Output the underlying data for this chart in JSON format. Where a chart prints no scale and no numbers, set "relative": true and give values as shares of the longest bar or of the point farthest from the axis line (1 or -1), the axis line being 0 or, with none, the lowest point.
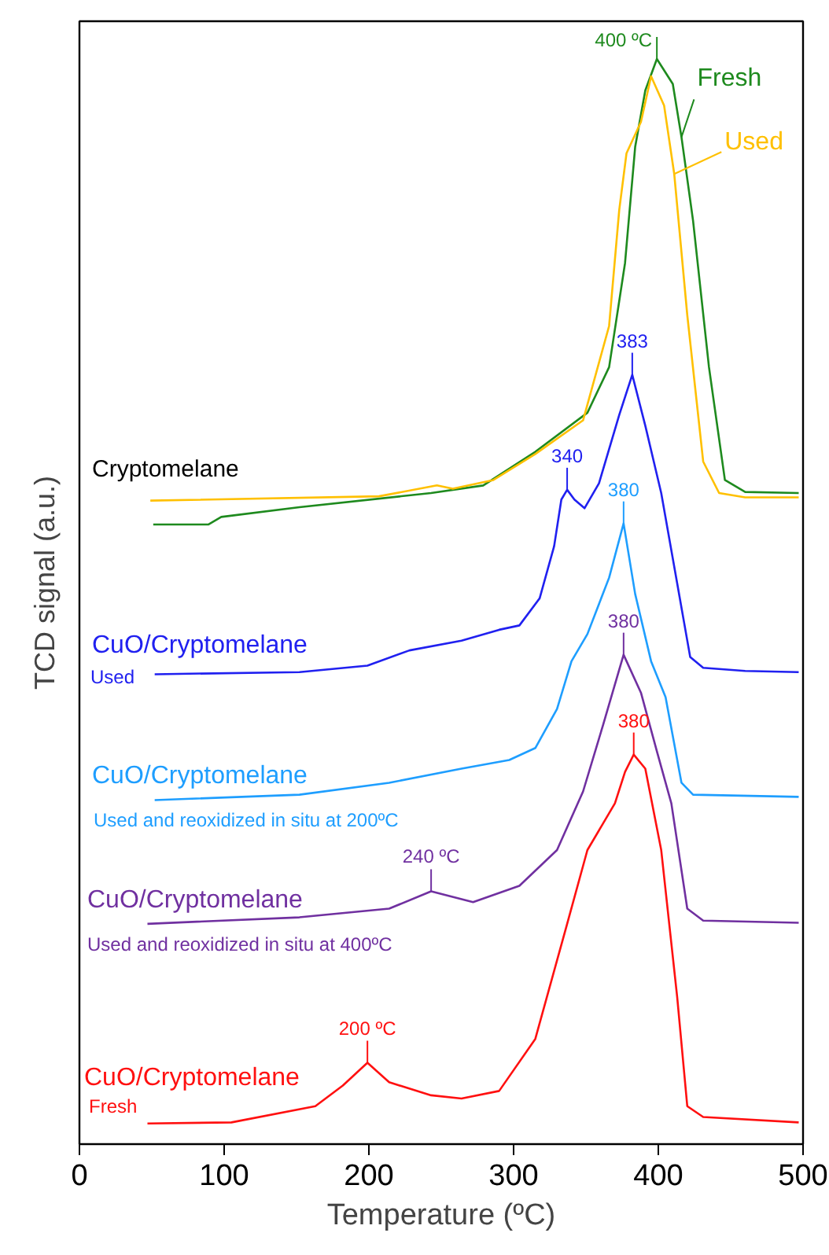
{
  "chart_data": {
    "type": "line",
    "relative": true,
    "xlabel": "Temperature (ºC)",
    "ylabel": "TCD signal (a.u.)",
    "xlim": [
      0,
      500
    ],
    "xticks": [
      0,
      100,
      200,
      300,
      400,
      500
    ],
    "grid": false,
    "series": [
      {
        "name": "Fresh",
        "color": "#1e8a1e",
        "x": [
          51,
          89,
          98,
          152,
          243,
          279,
          315,
          351,
          366,
          377,
          384,
          391,
          399,
          410,
          416,
          424,
          435,
          446,
          460,
          497
        ],
        "values": [
          0.571,
          0.571,
          0.578,
          0.587,
          0.6,
          0.607,
          0.638,
          0.674,
          0.716,
          0.812,
          0.919,
          0.971,
          1.0,
          0.977,
          0.928,
          0.851,
          0.716,
          0.612,
          0.601,
          0.6
        ]
      },
      {
        "name": "Used",
        "color": "#ffc000",
        "x": [
          49,
          207,
          247,
          258,
          286,
          315,
          348,
          366,
          373,
          378,
          388,
          395,
          404,
          411,
          420,
          431,
          442,
          460,
          497
        ],
        "values": [
          0.593,
          0.597,
          0.607,
          0.604,
          0.612,
          0.636,
          0.667,
          0.754,
          0.861,
          0.913,
          0.942,
          0.984,
          0.957,
          0.894,
          0.764,
          0.629,
          0.6,
          0.596,
          0.596
        ]
      },
      {
        "name": "CuO/Cryptomelane",
        "color": "#2020f0",
        "x": [
          52,
          152,
          199,
          228,
          264,
          290,
          304,
          318,
          328,
          333,
          337,
          342,
          349,
          359,
          373,
          382,
          391,
          402,
          413,
          422,
          431,
          460,
          497
        ],
        "values": [
          0.433,
          0.435,
          0.441,
          0.455,
          0.464,
          0.474,
          0.478,
          0.503,
          0.551,
          0.594,
          0.603,
          0.594,
          0.586,
          0.609,
          0.672,
          0.709,
          0.662,
          0.6,
          0.517,
          0.449,
          0.439,
          0.436,
          0.435
        ]
      },
      {
        "name": "CuO/Cryptomelane",
        "color": "#1e9eff",
        "x": [
          52,
          152,
          214,
          264,
          297,
          315,
          330,
          340,
          351,
          366,
          376,
          384,
          395,
          405,
          416,
          424,
          497
        ],
        "values": [
          0.317,
          0.322,
          0.333,
          0.346,
          0.354,
          0.365,
          0.401,
          0.445,
          0.47,
          0.522,
          0.572,
          0.507,
          0.445,
          0.412,
          0.333,
          0.322,
          0.32
        ]
      },
      {
        "name": "CuO/Cryptomelane",
        "color": "#7030a0",
        "x": [
          47,
          152,
          214,
          243,
          272,
          304,
          330,
          348,
          362,
          376,
          388,
          399,
          409,
          420,
          431,
          497
        ],
        "values": [
          0.203,
          0.209,
          0.217,
          0.233,
          0.223,
          0.238,
          0.271,
          0.325,
          0.387,
          0.451,
          0.416,
          0.362,
          0.314,
          0.217,
          0.206,
          0.204
        ]
      },
      {
        "name": "CuO/Cryptomelane",
        "color": "#ff1010",
        "x": [
          47,
          105,
          163,
          182,
          199,
          214,
          243,
          264,
          290,
          315,
          337,
          351,
          370,
          377,
          383,
          391,
          402,
          413,
          420,
          431,
          497
        ],
        "values": [
          0.019,
          0.02,
          0.035,
          0.054,
          0.075,
          0.057,
          0.045,
          0.042,
          0.049,
          0.097,
          0.203,
          0.271,
          0.314,
          0.343,
          0.359,
          0.346,
          0.271,
          0.136,
          0.035,
          0.025,
          0.02
        ]
      }
    ],
    "annotations": [
      "Cryptomelane",
      "Used",
      "Used and reoxidized in situ at 200ºC",
      "Used and reoxidized in situ at 400ºC",
      "Fresh",
      {
        "text": "400 ºC",
        "x": 399,
        "y": 1.0
      },
      {
        "text": "340",
        "x": 337,
        "y": 0.603
      },
      {
        "text": "383",
        "x": 382,
        "y": 0.709
      },
      {
        "text": "380",
        "x": 376,
        "y": 0.572
      },
      {
        "text": "380",
        "x": 376,
        "y": 0.451
      },
      {
        "text": "240 ºC",
        "x": 243,
        "y": 0.233
      },
      {
        "text": "380",
        "x": 383,
        "y": 0.359
      },
      {
        "text": "200 ºC",
        "x": 199,
        "y": 0.075
      }
    ]
  }
}
